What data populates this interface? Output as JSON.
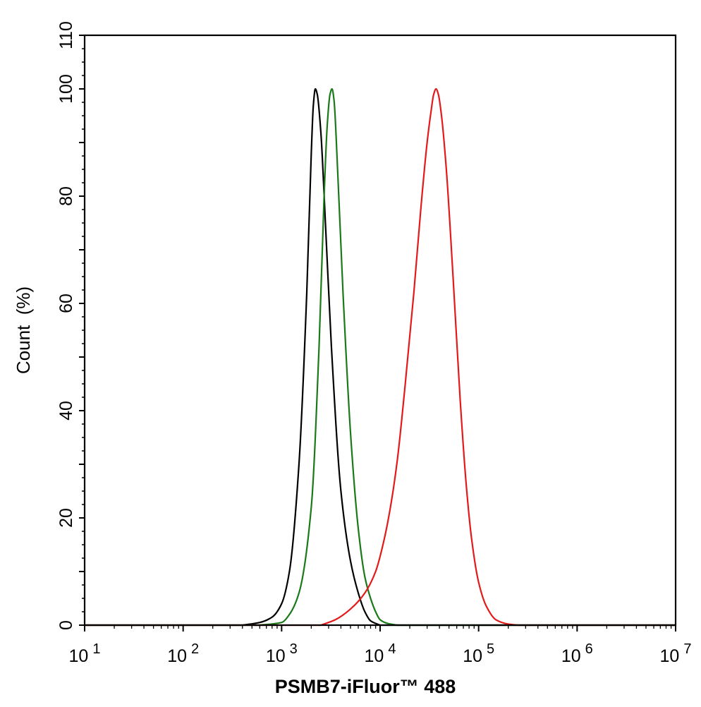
{
  "chart_data": {
    "type": "line",
    "title": "",
    "xlabel": "PSMB7-iFluor™ 488",
    "ylabel": "Count  (%)",
    "x_scale": "log",
    "xlim": [
      10,
      10000000
    ],
    "ylim": [
      0,
      110
    ],
    "grid": false,
    "x_tick_labels": [
      {
        "value": 10,
        "base": "10",
        "exp": "1"
      },
      {
        "value": 100,
        "base": "10",
        "exp": "2"
      },
      {
        "value": 1000,
        "base": "10",
        "exp": "3"
      },
      {
        "value": 10000,
        "base": "10",
        "exp": "4"
      },
      {
        "value": 100000,
        "base": "10",
        "exp": "5"
      },
      {
        "value": 1000000,
        "base": "10",
        "exp": "6"
      },
      {
        "value": 10000000,
        "base": "10",
        "exp": "7"
      }
    ],
    "y_ticks": [
      0,
      20,
      40,
      60,
      80,
      100,
      110
    ],
    "y_tick_labels": [
      "0",
      "20",
      "40",
      "60",
      "80",
      "100",
      "110"
    ],
    "series": [
      {
        "color": "#000000",
        "x": [
          400,
          600,
          800,
          1000,
          1200,
          1500,
          1800,
          2000,
          2100,
          2200,
          2300,
          2500,
          2800,
          3200,
          4000,
          5000,
          6000,
          7000,
          8000,
          10000
        ],
        "y": [
          0,
          0.5,
          1.5,
          4,
          10,
          30,
          62,
          88,
          97,
          100,
          99,
          92,
          74,
          52,
          25,
          12,
          6,
          2.5,
          0.8,
          0
        ]
      },
      {
        "color": "#1a7a1a",
        "x": [
          600,
          1000,
          1200,
          1500,
          2000,
          2400,
          2700,
          2900,
          3100,
          3250,
          3400,
          3700,
          4200,
          5000,
          6000,
          7000,
          8000,
          9000,
          10000,
          12000,
          15000
        ],
        "y": [
          0,
          0.5,
          2,
          6,
          22,
          52,
          80,
          93,
          99,
          100,
          98,
          85,
          62,
          36,
          18,
          9,
          5,
          2.5,
          1,
          0.3,
          0
        ]
      },
      {
        "color": "#e31a1a",
        "x": [
          2500,
          3500,
          5000,
          7000,
          9000,
          11000,
          13000,
          15000,
          18000,
          22000,
          26000,
          30000,
          33000,
          35000,
          37000,
          39000,
          42000,
          47000,
          55000,
          65000,
          75000,
          85000,
          100000,
          120000,
          150000,
          200000,
          250000
        ],
        "y": [
          0,
          1,
          3,
          6,
          10,
          16,
          23,
          31,
          45,
          62,
          78,
          90,
          96,
          99,
          100,
          99,
          95,
          85,
          65,
          42,
          26,
          16,
          8,
          3.5,
          1,
          0.2,
          0
        ]
      }
    ]
  }
}
